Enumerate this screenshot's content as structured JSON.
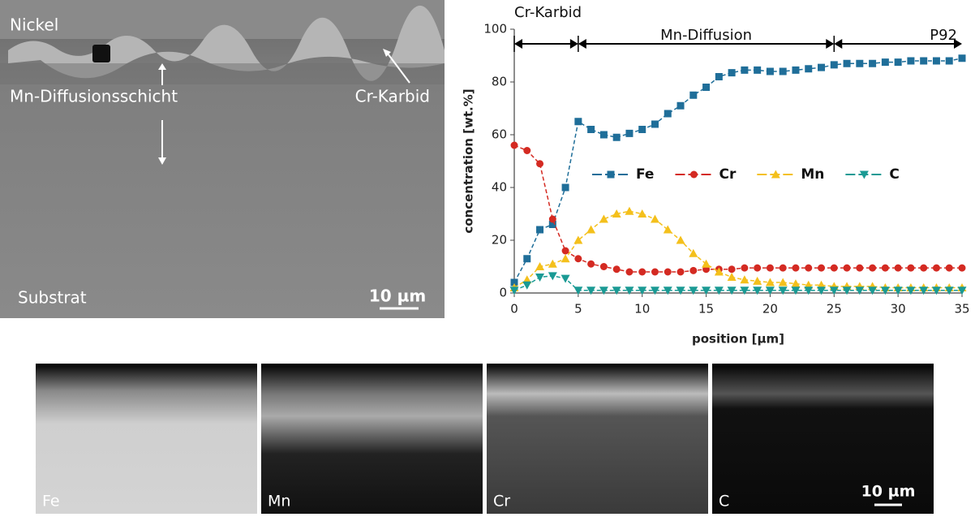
{
  "sem_image": {
    "labels": [
      "Nickel",
      "Mn-Diffusionsschicht",
      "Cr-Karbid",
      "Substrat"
    ],
    "scale_bar": "10 µm"
  },
  "chart_data": {
    "type": "line",
    "x_label": "position [µm]",
    "y_label": "concentration [wt.%]",
    "x": [
      0,
      1,
      2,
      3,
      4,
      5,
      6,
      7,
      8,
      9,
      10,
      11,
      12,
      13,
      14,
      15,
      16,
      17,
      18,
      19,
      20,
      21,
      22,
      23,
      24,
      25,
      26,
      27,
      28,
      29,
      30,
      31,
      32,
      33,
      34,
      35
    ],
    "series": [
      {
        "name": "Fe",
        "color": "#1f6e99",
        "marker": "square",
        "values": [
          4,
          13,
          24,
          26,
          40,
          65,
          62,
          60,
          59,
          60.5,
          62,
          64,
          68,
          71,
          75,
          78,
          82,
          83.5,
          84.5,
          84.5,
          84,
          84,
          84.5,
          85,
          85.5,
          86.5,
          87,
          87,
          87,
          87.5,
          87.5,
          88,
          88,
          88,
          88,
          89
        ]
      },
      {
        "name": "Cr",
        "color": "#d42a22",
        "marker": "circle",
        "values": [
          56,
          54,
          49,
          28,
          16,
          13,
          11,
          10,
          9,
          8,
          8,
          8,
          8,
          8,
          8.5,
          9,
          9,
          9,
          9.5,
          9.5,
          9.5,
          9.5,
          9.5,
          9.5,
          9.5,
          9.5,
          9.5,
          9.5,
          9.5,
          9.5,
          9.5,
          9.5,
          9.5,
          9.5,
          9.5,
          9.5
        ]
      },
      {
        "name": "Mn",
        "color": "#f4c01c",
        "marker": "triangle",
        "values": [
          2,
          5,
          10,
          11,
          13,
          20,
          24,
          28,
          30,
          31,
          30,
          28,
          24,
          20,
          15,
          11,
          8,
          6,
          5,
          4.5,
          4,
          4,
          3.5,
          3,
          3,
          2.5,
          2.5,
          2.5,
          2.5,
          2,
          2,
          2,
          2,
          2,
          2,
          2
        ]
      },
      {
        "name": "C",
        "color": "#1a9a94",
        "marker": "triangle-down",
        "values": [
          1,
          3,
          6,
          6.5,
          5.5,
          1,
          1,
          1,
          1,
          1,
          1,
          1,
          1,
          1,
          1,
          1,
          1,
          1,
          1,
          1,
          1,
          1,
          1,
          1,
          1,
          1,
          1,
          1,
          1,
          1,
          1,
          1,
          1,
          1,
          1,
          1
        ]
      }
    ],
    "xlim": [
      0,
      35
    ],
    "xticks": [
      0,
      5,
      10,
      15,
      20,
      25,
      30,
      35
    ],
    "ylim": [
      0,
      100
    ],
    "yticks": [
      0,
      20,
      40,
      60,
      80,
      100
    ],
    "legend": "right",
    "regions": [
      {
        "label": "Cr-Karbid",
        "range": [
          0,
          5
        ]
      },
      {
        "label": "Mn-Diffusion",
        "range": [
          5,
          25
        ]
      },
      {
        "label": "P92",
        "range": [
          25,
          35
        ]
      }
    ]
  },
  "maps": {
    "labels": [
      "Fe",
      "Mn",
      "Cr",
      "C"
    ],
    "scale_bar": "10 µm"
  }
}
